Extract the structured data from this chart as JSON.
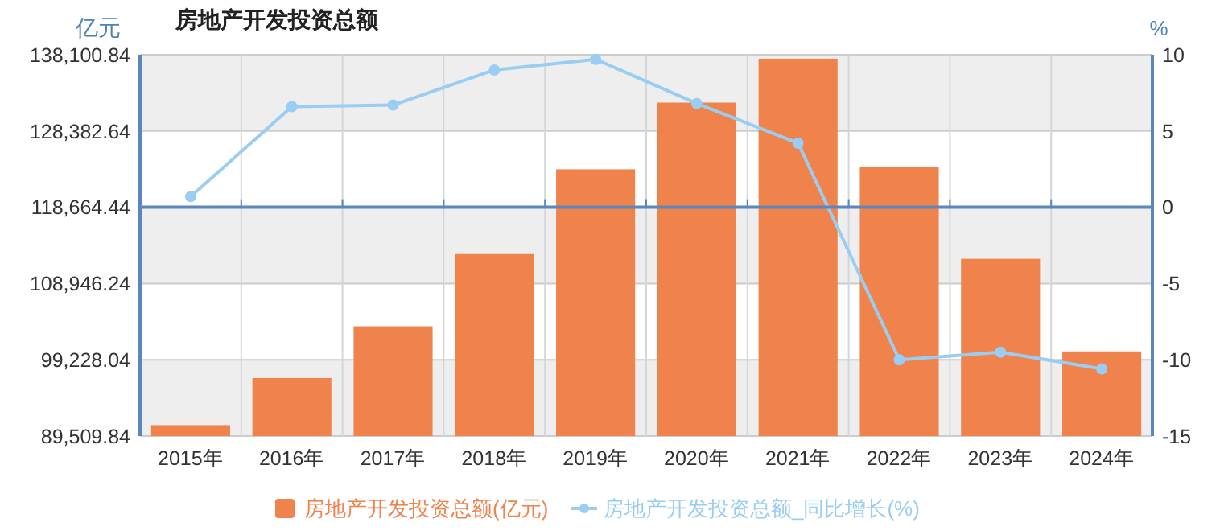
{
  "chart_data": {
    "type": "bar",
    "title": "房地产开发投资总额",
    "ylabel": "亿元",
    "y2label": "%",
    "categories": [
      "2015年",
      "2016年",
      "2017年",
      "2018年",
      "2019年",
      "2020年",
      "2021年",
      "2022年",
      "2023年",
      "2024年"
    ],
    "series": [
      {
        "name": "房地产开发投资总额(亿元)",
        "color": "#f0824c",
        "values": [
          90900,
          96900,
          103500,
          112700,
          123500,
          132000,
          137600,
          123800,
          112100,
          100300
        ]
      },
      {
        "name": "房地产开发投资总额_同比增长(%)",
        "type": "line",
        "axis": "y2",
        "color": "#99cdf2",
        "values": [
          0.7,
          6.6,
          6.7,
          9.0,
          9.7,
          6.8,
          4.2,
          -10.0,
          -9.5,
          -10.6
        ]
      }
    ],
    "ylim": [
      89509.84,
      138100.84
    ],
    "yticks": [
      {
        "value": 89509.84,
        "label": "89,509.84"
      },
      {
        "value": 99228.04,
        "label": "99,228.04"
      },
      {
        "value": 108946.24,
        "label": "108,946.24"
      },
      {
        "value": 118664.44,
        "label": "118,664.44"
      },
      {
        "value": 128382.64,
        "label": "128,382.64"
      },
      {
        "value": 138100.84,
        "label": "138,100.84"
      }
    ],
    "y2lim": [
      -15,
      10
    ],
    "y2ticks": [
      -15,
      -10,
      -5,
      0,
      5,
      10
    ],
    "ref_lines": [
      {
        "axis": "y2",
        "value": 0,
        "color": "#5b87bd"
      }
    ],
    "grid": true,
    "legend": "bottom",
    "marker": "circle",
    "line_style": "solid"
  }
}
